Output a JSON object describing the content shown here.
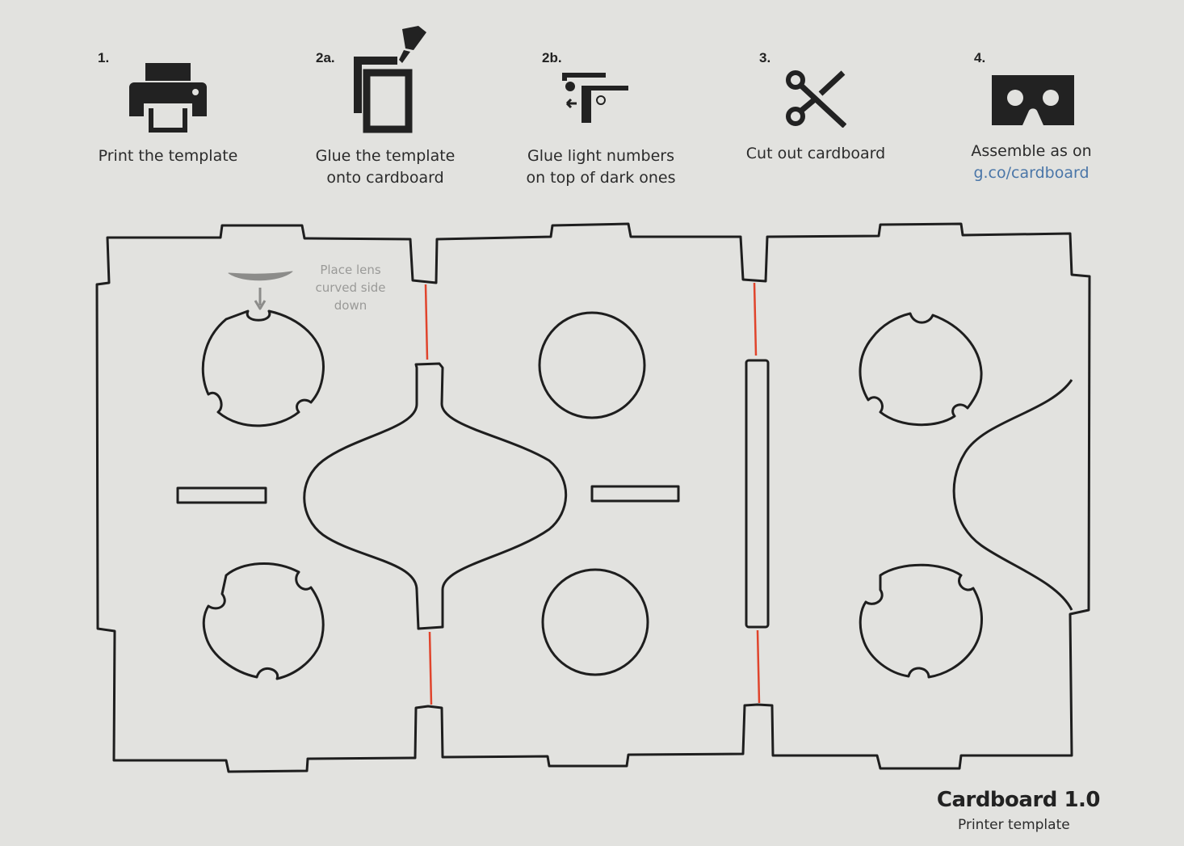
{
  "steps": [
    {
      "number": "1.",
      "lines": [
        "Print the template"
      ],
      "icon": "printer-icon"
    },
    {
      "number": "2a.",
      "lines": [
        "Glue the template",
        "onto cardboard"
      ],
      "icon": "glue-template-icon"
    },
    {
      "number": "2b.",
      "lines": [
        "Glue light numbers",
        "on top of dark ones"
      ],
      "icon": "glue-numbers-icon"
    },
    {
      "number": "3.",
      "lines": [
        "Cut out cardboard"
      ],
      "icon": "scissors-icon"
    },
    {
      "number": "4.",
      "lines": [
        "Assemble as on",
        "g.co/cardboard"
      ],
      "icon": "cardboard-viewer-icon"
    }
  ],
  "lens_note": [
    "Place lens",
    "curved side",
    "down"
  ],
  "footer": {
    "title": "Cardboard 1.0",
    "subtitle": "Printer template"
  },
  "colors": {
    "cut_line": "#1e1e1e",
    "fold_line": "#e0442c",
    "link": "#4a76a8",
    "paper": "#e2e2df"
  }
}
